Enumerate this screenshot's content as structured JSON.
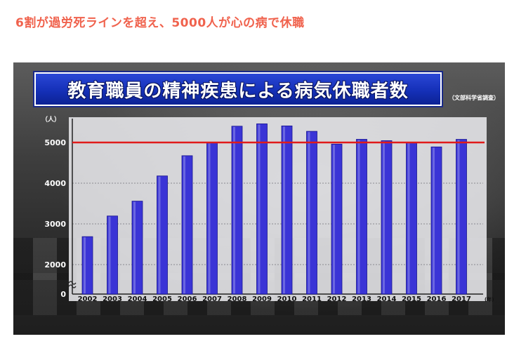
{
  "page": {
    "headline": "6割が過労死ラインを超え、5000人が心の病で休職"
  },
  "figure": {
    "banner_title": "教育職員の精神疾患による病気休職者数",
    "source": "（文部科学省調査）"
  },
  "chart_data": {
    "type": "bar",
    "title": "教育職員の精神疾患による病気休職者数",
    "categories": [
      "2002",
      "2003",
      "2004",
      "2005",
      "2006",
      "2007",
      "2008",
      "2009",
      "2010",
      "2011",
      "2012",
      "2013",
      "2014",
      "2015",
      "2016",
      "2017"
    ],
    "values": [
      2687,
      3194,
      3559,
      4178,
      4675,
      4995,
      5400,
      5458,
      5407,
      5274,
      4960,
      5078,
      5045,
      5009,
      4891,
      5077
    ],
    "y_unit_label": "（人）",
    "x_unit_label": "(年)",
    "y_ticks": [
      0,
      2000,
      3000,
      4000,
      5000
    ],
    "y_axis_break": true,
    "reference_line": {
      "value": 5000,
      "color": "#e01b1b"
    },
    "ylim": [
      0,
      5600
    ],
    "bar_color": "#3a34d6",
    "grid": true
  }
}
